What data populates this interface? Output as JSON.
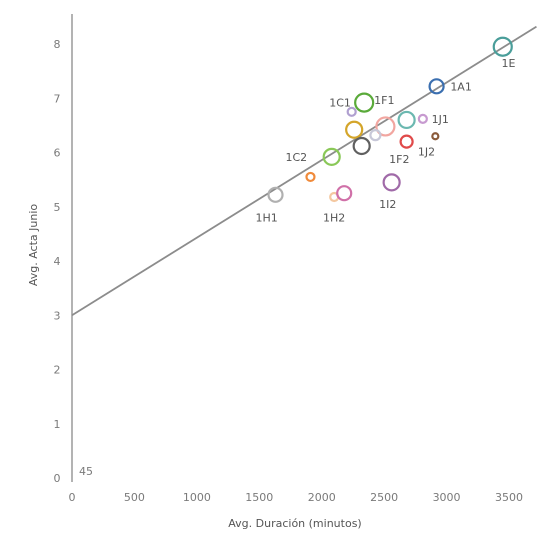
{
  "chart_data": {
    "type": "scatter",
    "title": "",
    "xlabel": "Avg. Duración (minutos)",
    "ylabel": "Avg. Acta Junio",
    "xlim": [
      0,
      3600
    ],
    "ylim": [
      0,
      8.5
    ],
    "x_ticks": [
      "0",
      "500",
      "1000",
      "1500",
      "2000",
      "2500",
      "3000",
      "3500"
    ],
    "y_ticks": [
      "0",
      "1",
      "2",
      "3",
      "4",
      "5",
      "6",
      "7",
      "8"
    ],
    "corner_annotation": "45",
    "grid": false,
    "trend_line": {
      "intercept": 3.0,
      "slope": 0.00143
    },
    "points": [
      {
        "x": 3450,
        "y": 7.95,
        "size": 9,
        "color": "#4a9e9a",
        "label": "1E"
      },
      {
        "x": 2920,
        "y": 7.22,
        "size": 7,
        "color": "#3b6fb0",
        "label": "1A1"
      },
      {
        "x": 2340,
        "y": 6.92,
        "size": 9,
        "color": "#5aaa3a",
        "label": "1F1"
      },
      {
        "x": 2240,
        "y": 6.75,
        "size": 4,
        "color": "#b0a0d0",
        "label": ""
      },
      {
        "x": 2680,
        "y": 6.6,
        "size": 8,
        "color": "#6bb8b0",
        "label": ""
      },
      {
        "x": 2810,
        "y": 6.62,
        "size": 4,
        "color": "#c79ad0",
        "label": ""
      },
      {
        "x": 2510,
        "y": 6.48,
        "size": 9,
        "color": "#f2a6a0",
        "label": ""
      },
      {
        "x": 2260,
        "y": 6.42,
        "size": 8,
        "color": "#d4a52a",
        "label": ""
      },
      {
        "x": 2430,
        "y": 6.32,
        "size": 5,
        "color": "#c8c8d8",
        "label": ""
      },
      {
        "x": 2680,
        "y": 6.2,
        "size": 6,
        "color": "#e04a4a",
        "label": ""
      },
      {
        "x": 2910,
        "y": 6.3,
        "size": 3,
        "color": "#8a5a3a",
        "label": ""
      },
      {
        "x": 2320,
        "y": 6.12,
        "size": 8,
        "color": "#606060",
        "label": ""
      },
      {
        "x": 2080,
        "y": 5.92,
        "size": 8,
        "color": "#8ac858",
        "label": ""
      },
      {
        "x": 1910,
        "y": 5.55,
        "size": 4,
        "color": "#f08a3a",
        "label": ""
      },
      {
        "x": 2560,
        "y": 5.45,
        "size": 8,
        "color": "#a06aa8",
        "label": ""
      },
      {
        "x": 1630,
        "y": 5.22,
        "size": 7,
        "color": "#b0b0b0",
        "label": ""
      },
      {
        "x": 2100,
        "y": 5.18,
        "size": 4,
        "color": "#f4c8a0",
        "label": ""
      },
      {
        "x": 2180,
        "y": 5.25,
        "size": 7,
        "color": "#d070a8",
        "label": ""
      }
    ],
    "labels": [
      {
        "text": "1E",
        "x": 3440,
        "y": 7.65
      },
      {
        "text": "1A1",
        "x": 3030,
        "y": 7.22
      },
      {
        "text": "1C1",
        "x": 2060,
        "y": 6.92
      },
      {
        "text": "1F1",
        "x": 2420,
        "y": 6.97
      },
      {
        "text": "1J1",
        "x": 2880,
        "y": 6.62
      },
      {
        "text": "1C2",
        "x": 1710,
        "y": 5.92
      },
      {
        "text": "1F2",
        "x": 2540,
        "y": 5.88
      },
      {
        "text": "1J2",
        "x": 2770,
        "y": 6.02
      },
      {
        "text": "1I2",
        "x": 2460,
        "y": 5.05
      },
      {
        "text": "1H1",
        "x": 1470,
        "y": 4.8
      },
      {
        "text": "1H2",
        "x": 2010,
        "y": 4.8
      }
    ]
  }
}
